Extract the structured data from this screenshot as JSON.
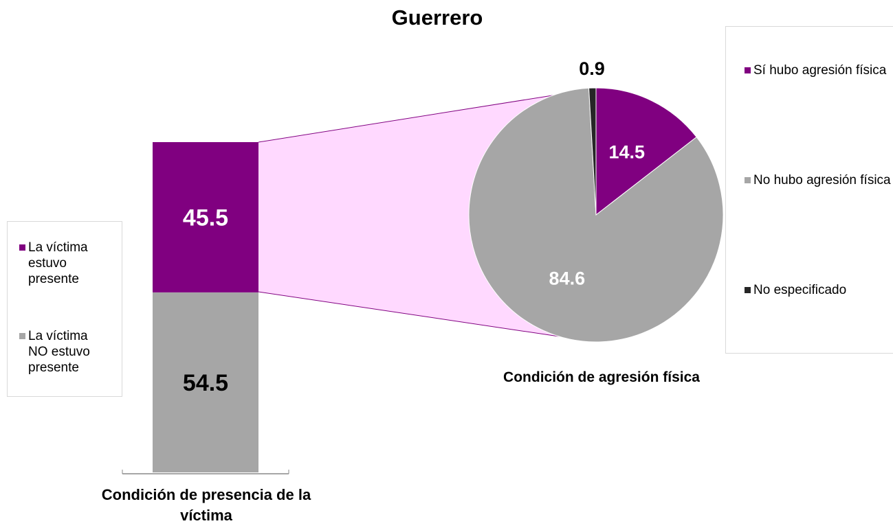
{
  "chart_data": [
    {
      "type": "stacked_bar",
      "title": "Guerrero",
      "xlabel": "Condición de presencia de la víctima",
      "categories": [
        null
      ],
      "series": [
        {
          "name": "La víctima estuvo presente",
          "color": "#800080",
          "values": [
            45.5
          ]
        },
        {
          "name": "La víctima NO estuvo presente",
          "color": "#a6a6a6",
          "values": [
            54.5
          ]
        }
      ]
    },
    {
      "type": "pie",
      "xlabel": "Condición de agresión física",
      "categories": [
        "Sí hubo agresión física",
        "No hubo agresión física",
        "No especificado"
      ],
      "values": [
        14.5,
        84.6,
        0.9
      ],
      "colors": [
        "#800080",
        "#a6a6a6",
        "#262626"
      ]
    }
  ]
}
